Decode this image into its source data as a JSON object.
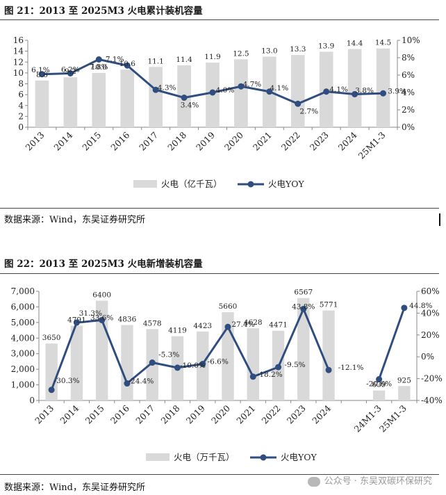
{
  "figures": [
    {
      "title": "图 21：2013 至 2025M3 火电累计装机容量",
      "source": "数据来源：Wind，东吴证券研究所",
      "chart_data": {
        "type": "bar+line",
        "categories": [
          "2013",
          "2014",
          "2015",
          "2016",
          "2017",
          "2018",
          "2019",
          "2020",
          "2021",
          "2022",
          "2023",
          "2024",
          "25M1-3"
        ],
        "series": [
          {
            "name": "火电（亿千瓦）",
            "type": "bar",
            "axis": "left",
            "values": [
              8.6,
              9.2,
              10.0,
              10.6,
              11.1,
              11.4,
              11.9,
              12.5,
              13.0,
              13.3,
              13.9,
              14.4,
              14.5
            ],
            "labels": [
              "8.6",
              "9.2",
              "10.0",
              "10.6",
              "11.1",
              "11.4",
              "11.9",
              "12.5",
              "13.0",
              "13.3",
              "13.9",
              "14.4",
              "14.5"
            ]
          },
          {
            "name": "火电YOY",
            "type": "line",
            "axis": "right",
            "values": [
              6.1,
              6.2,
              7.8,
              7.1,
              4.3,
              3.4,
              4.0,
              4.7,
              4.1,
              2.7,
              4.1,
              3.8,
              3.9
            ],
            "labels": [
              "6.1%",
              "6.2%",
              "7.8%",
              "7.1%",
              "4.3%",
              "3.4%",
              "4.0%",
              "4.7%",
              "4.1%",
              "2.7%",
              "4.1%",
              "3.8%",
              "3.9%"
            ]
          }
        ],
        "y_left": {
          "min": 0,
          "max": 16,
          "ticks": [
            "0",
            "2",
            "4",
            "6",
            "8",
            "10",
            "12",
            "14",
            "16"
          ]
        },
        "y_right": {
          "min": 0,
          "max": 10,
          "ticks": [
            "0%",
            "2%",
            "4%",
            "6%",
            "8%",
            "10%"
          ]
        },
        "grid": false,
        "legend_position": "bottom"
      }
    },
    {
      "title": "图 22：2013 至 2025M3 火电新增装机容量",
      "source": "数据来源：Wind，东吴证券研究所",
      "chart_data": {
        "type": "bar+line",
        "categories": [
          "2013",
          "2014",
          "2015",
          "2016",
          "2017",
          "2018",
          "2019",
          "2020",
          "2021",
          "2022",
          "2023",
          "2024",
          "",
          "24M1-3",
          "25M1-3"
        ],
        "series": [
          {
            "name": "火电（万千瓦）",
            "type": "bar",
            "axis": "left",
            "values": [
              3650,
              4791,
              6400,
              4836,
              4578,
              4119,
              4423,
              5660,
              4628,
              4471,
              6567,
              5771,
              null,
              639,
              925
            ],
            "labels": [
              "3650",
              "4791",
              "6400",
              "4836",
              "4578",
              "4119",
              "4423",
              "5660",
              "4628",
              "4471",
              "6567",
              "5771",
              "",
              "639",
              "925"
            ]
          },
          {
            "name": "火电YOY",
            "type": "line",
            "axis": "right",
            "values": [
              -30.3,
              31.3,
              33.6,
              -24.4,
              -5.3,
              -10.0,
              -6.6,
              27.4,
              -18.2,
              -9.5,
              43.8,
              -12.1,
              null,
              -20.6,
              44.8
            ],
            "labels": [
              "-30.3%",
              "31.3%",
              "33.6%",
              "-24.4%",
              "-5.3%",
              "-10.0%",
              "-6.6%",
              "27.4%",
              "-18.2%",
              "-9.5%",
              "43.8%",
              "-12.1%",
              "",
              "-20.6%",
              "44.8%"
            ]
          }
        ],
        "y_left": {
          "min": 0,
          "max": 7000,
          "ticks": [
            "0",
            "1,000",
            "2,000",
            "3,000",
            "4,000",
            "5,000",
            "6,000",
            "7,000"
          ]
        },
        "y_right": {
          "min": -40,
          "max": 60,
          "ticks": [
            "-40%",
            "-20%",
            "0%",
            "20%",
            "40%",
            "60%"
          ]
        },
        "grid": false,
        "legend_position": "bottom"
      }
    }
  ],
  "watermark": "公众号 · 东吴双碳环保研究",
  "colors": {
    "bar": "#d9d9d9",
    "line": "#2f4d7e",
    "text": "#222222",
    "axis": "#888888"
  }
}
